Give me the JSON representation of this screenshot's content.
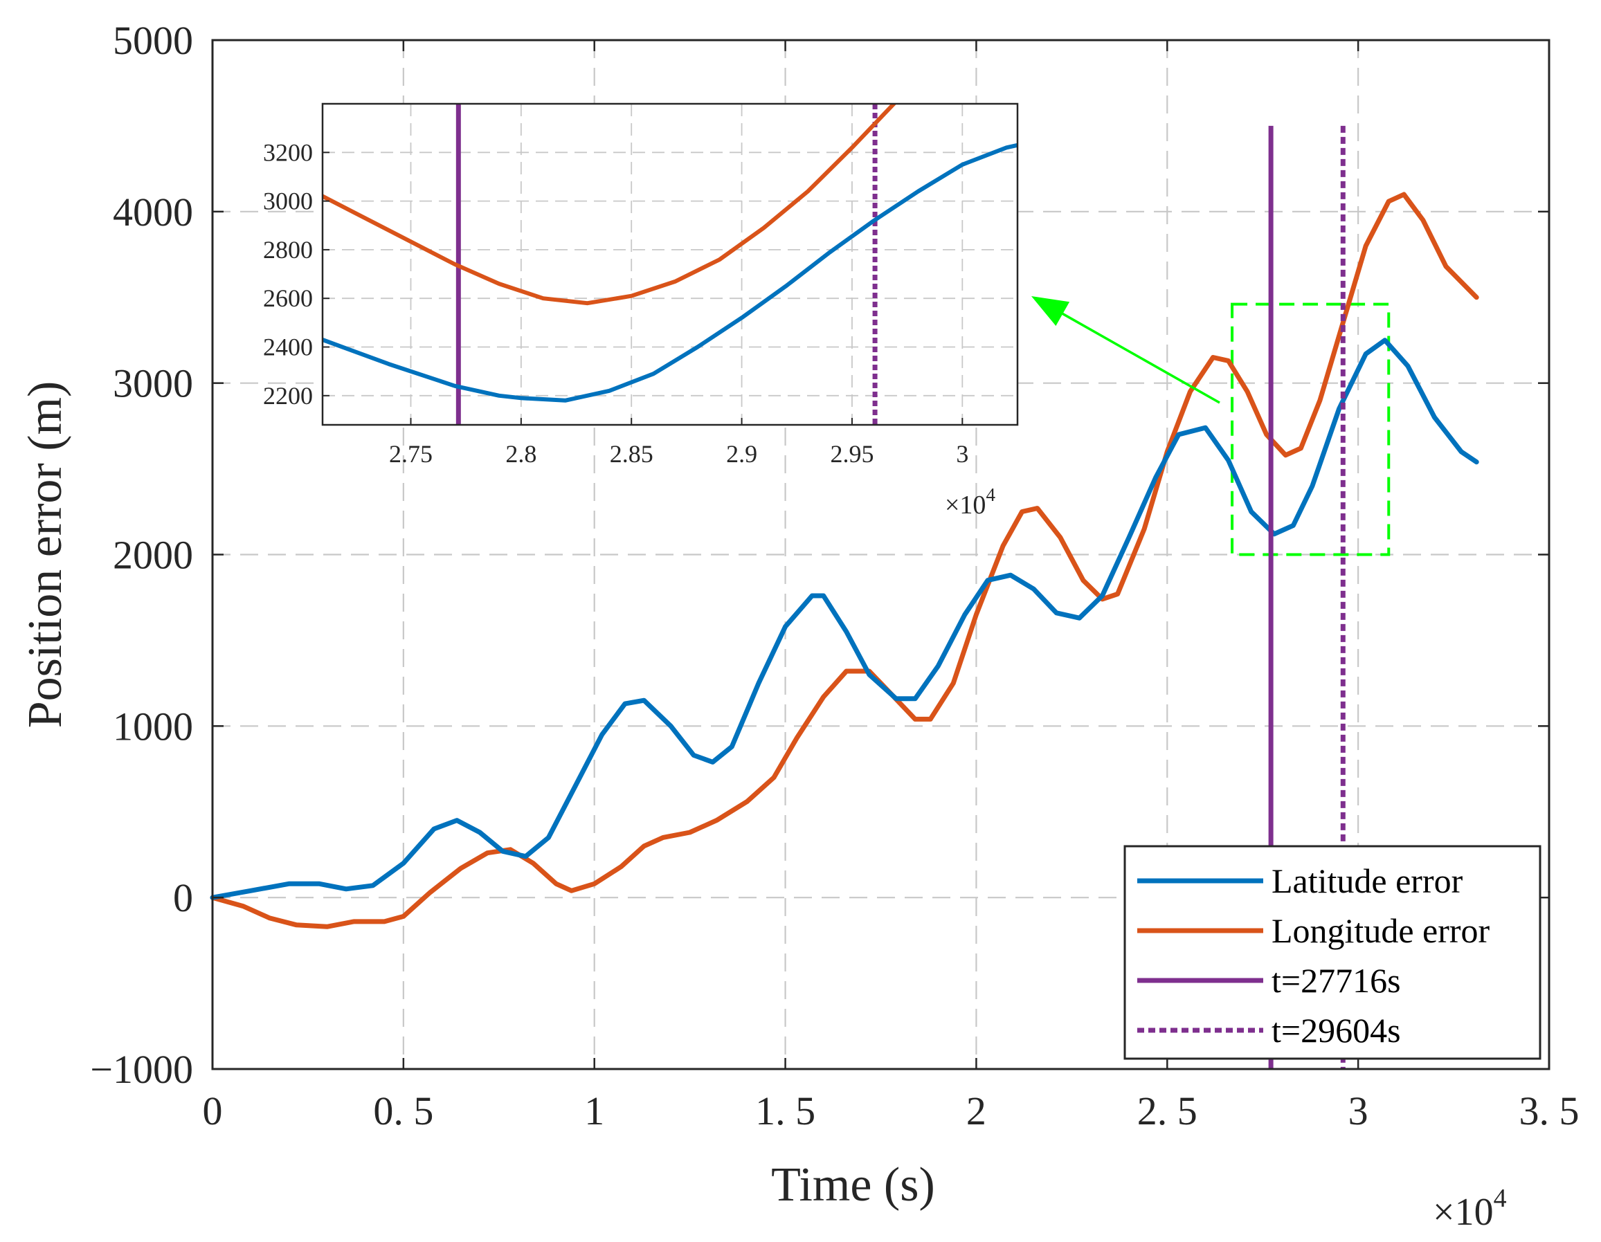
{
  "chart_data": [
    {
      "id": "main",
      "type": "line",
      "xlabel": "Time (s)",
      "ylabel": "Position error (m)",
      "x_multiplier_label": "×10",
      "x_multiplier_exp": "4",
      "xlim": [
        0,
        3.5
      ],
      "ylim": [
        -1000,
        5000
      ],
      "xticks": [
        0,
        0.5,
        1,
        1.5,
        2,
        2.5,
        3,
        3.5
      ],
      "xtick_labels": [
        "0",
        "0. 5",
        "1",
        "1. 5",
        "2",
        "2. 5",
        "3",
        "3. 5"
      ],
      "yticks": [
        -1000,
        0,
        1000,
        2000,
        3000,
        4000,
        5000
      ],
      "ytick_labels": [
        "−1000",
        "0",
        "1000",
        "2000",
        "3000",
        "4000",
        "5000"
      ],
      "grid": true,
      "legend_position": "bottom-right",
      "series": [
        {
          "name": "Latitude error",
          "color": "#0072BD",
          "points": [
            [
              0,
              0
            ],
            [
              0.1,
              40
            ],
            [
              0.2,
              80
            ],
            [
              0.28,
              80
            ],
            [
              0.35,
              50
            ],
            [
              0.42,
              70
            ],
            [
              0.5,
              200
            ],
            [
              0.58,
              400
            ],
            [
              0.64,
              450
            ],
            [
              0.7,
              380
            ],
            [
              0.76,
              270
            ],
            [
              0.82,
              240
            ],
            [
              0.88,
              350
            ],
            [
              0.95,
              650
            ],
            [
              1.02,
              950
            ],
            [
              1.08,
              1130
            ],
            [
              1.13,
              1150
            ],
            [
              1.2,
              1000
            ],
            [
              1.26,
              830
            ],
            [
              1.31,
              790
            ],
            [
              1.36,
              880
            ],
            [
              1.43,
              1250
            ],
            [
              1.5,
              1580
            ],
            [
              1.57,
              1760
            ],
            [
              1.6,
              1760
            ],
            [
              1.66,
              1550
            ],
            [
              1.72,
              1300
            ],
            [
              1.79,
              1160
            ],
            [
              1.84,
              1160
            ],
            [
              1.9,
              1350
            ],
            [
              1.97,
              1650
            ],
            [
              2.03,
              1850
            ],
            [
              2.09,
              1880
            ],
            [
              2.15,
              1800
            ],
            [
              2.21,
              1660
            ],
            [
              2.27,
              1630
            ],
            [
              2.33,
              1760
            ],
            [
              2.4,
              2100
            ],
            [
              2.47,
              2450
            ],
            [
              2.53,
              2700
            ],
            [
              2.6,
              2740
            ],
            [
              2.66,
              2550
            ],
            [
              2.72,
              2250
            ],
            [
              2.78,
              2120
            ],
            [
              2.83,
              2170
            ],
            [
              2.88,
              2400
            ],
            [
              2.95,
              2850
            ],
            [
              3.02,
              3170
            ],
            [
              3.07,
              3250
            ],
            [
              3.13,
              3100
            ],
            [
              3.2,
              2800
            ],
            [
              3.27,
              2600
            ],
            [
              3.31,
              2540
            ]
          ]
        },
        {
          "name": "Longitude error",
          "color": "#D95319",
          "points": [
            [
              0,
              0
            ],
            [
              0.08,
              -50
            ],
            [
              0.15,
              -120
            ],
            [
              0.22,
              -160
            ],
            [
              0.3,
              -170
            ],
            [
              0.37,
              -140
            ],
            [
              0.45,
              -140
            ],
            [
              0.5,
              -110
            ],
            [
              0.57,
              30
            ],
            [
              0.65,
              170
            ],
            [
              0.72,
              260
            ],
            [
              0.78,
              280
            ],
            [
              0.84,
              200
            ],
            [
              0.9,
              80
            ],
            [
              0.94,
              40
            ],
            [
              1.0,
              80
            ],
            [
              1.07,
              180
            ],
            [
              1.13,
              300
            ],
            [
              1.18,
              350
            ],
            [
              1.25,
              380
            ],
            [
              1.32,
              450
            ],
            [
              1.4,
              560
            ],
            [
              1.47,
              700
            ],
            [
              1.53,
              930
            ],
            [
              1.6,
              1170
            ],
            [
              1.66,
              1320
            ],
            [
              1.72,
              1320
            ],
            [
              1.78,
              1180
            ],
            [
              1.84,
              1040
            ],
            [
              1.88,
              1040
            ],
            [
              1.94,
              1250
            ],
            [
              2.0,
              1650
            ],
            [
              2.07,
              2050
            ],
            [
              2.12,
              2250
            ],
            [
              2.16,
              2270
            ],
            [
              2.22,
              2100
            ],
            [
              2.28,
              1850
            ],
            [
              2.33,
              1740
            ],
            [
              2.37,
              1770
            ],
            [
              2.44,
              2150
            ],
            [
              2.5,
              2600
            ],
            [
              2.56,
              2950
            ],
            [
              2.62,
              3150
            ],
            [
              2.66,
              3130
            ],
            [
              2.71,
              2950
            ],
            [
              2.76,
              2700
            ],
            [
              2.81,
              2580
            ],
            [
              2.85,
              2620
            ],
            [
              2.9,
              2900
            ],
            [
              2.96,
              3350
            ],
            [
              3.02,
              3800
            ],
            [
              3.08,
              4060
            ],
            [
              3.12,
              4100
            ],
            [
              3.17,
              3950
            ],
            [
              3.23,
              3680
            ],
            [
              3.31,
              3500
            ]
          ]
        }
      ],
      "vlines": [
        {
          "name": "t=27716s",
          "x": 2.7716,
          "y_top": 4500,
          "color": "#7E2F8E",
          "style": "solid"
        },
        {
          "name": "t=29604s",
          "x": 2.9604,
          "y_top": 4500,
          "color": "#7E2F8E",
          "style": "dotted"
        }
      ],
      "zoom_box": {
        "x": [
          2.67,
          3.08
        ],
        "y": [
          2000,
          3460
        ],
        "color": "#00FF00"
      },
      "legend": [
        "Latitude error",
        "Longitude error",
        "t=27716s",
        "t=29604s"
      ]
    },
    {
      "id": "inset",
      "type": "line",
      "xlim": [
        2.71,
        3.025
      ],
      "ylim": [
        2080,
        3400
      ],
      "x_multiplier_label": "×10",
      "x_multiplier_exp": "4",
      "xticks": [
        2.75,
        2.8,
        2.85,
        2.9,
        2.95,
        3.0
      ],
      "xtick_labels": [
        "2.75",
        "2.8",
        "2.85",
        "2.9",
        "2.95",
        "3"
      ],
      "yticks": [
        2200,
        2400,
        2600,
        2800,
        3000,
        3200
      ],
      "ytick_labels": [
        "2200",
        "2400",
        "2600",
        "2800",
        "3000",
        "3200"
      ],
      "grid": true,
      "series": [
        {
          "name": "Latitude error",
          "color": "#0072BD",
          "points": [
            [
              2.71,
              2430
            ],
            [
              2.74,
              2330
            ],
            [
              2.77,
              2240
            ],
            [
              2.79,
              2200
            ],
            [
              2.8,
              2190
            ],
            [
              2.82,
              2180
            ],
            [
              2.84,
              2220
            ],
            [
              2.86,
              2290
            ],
            [
              2.88,
              2400
            ],
            [
              2.9,
              2520
            ],
            [
              2.92,
              2650
            ],
            [
              2.94,
              2790
            ],
            [
              2.96,
              2920
            ],
            [
              2.98,
              3040
            ],
            [
              3.0,
              3150
            ],
            [
              3.02,
              3220
            ],
            [
              3.025,
              3230
            ]
          ]
        },
        {
          "name": "Longitude error",
          "color": "#D95319",
          "points": [
            [
              2.71,
              3020
            ],
            [
              2.74,
              2880
            ],
            [
              2.77,
              2740
            ],
            [
              2.79,
              2660
            ],
            [
              2.81,
              2600
            ],
            [
              2.83,
              2580
            ],
            [
              2.85,
              2610
            ],
            [
              2.87,
              2670
            ],
            [
              2.89,
              2760
            ],
            [
              2.91,
              2890
            ],
            [
              2.93,
              3040
            ],
            [
              2.95,
              3220
            ],
            [
              2.97,
              3410
            ]
          ]
        }
      ],
      "vlines": [
        {
          "name": "t=27716s",
          "x": 2.7716,
          "color": "#7E2F8E",
          "style": "solid"
        },
        {
          "name": "t=29604s",
          "x": 2.9604,
          "color": "#7E2F8E",
          "style": "dotted"
        }
      ]
    }
  ]
}
